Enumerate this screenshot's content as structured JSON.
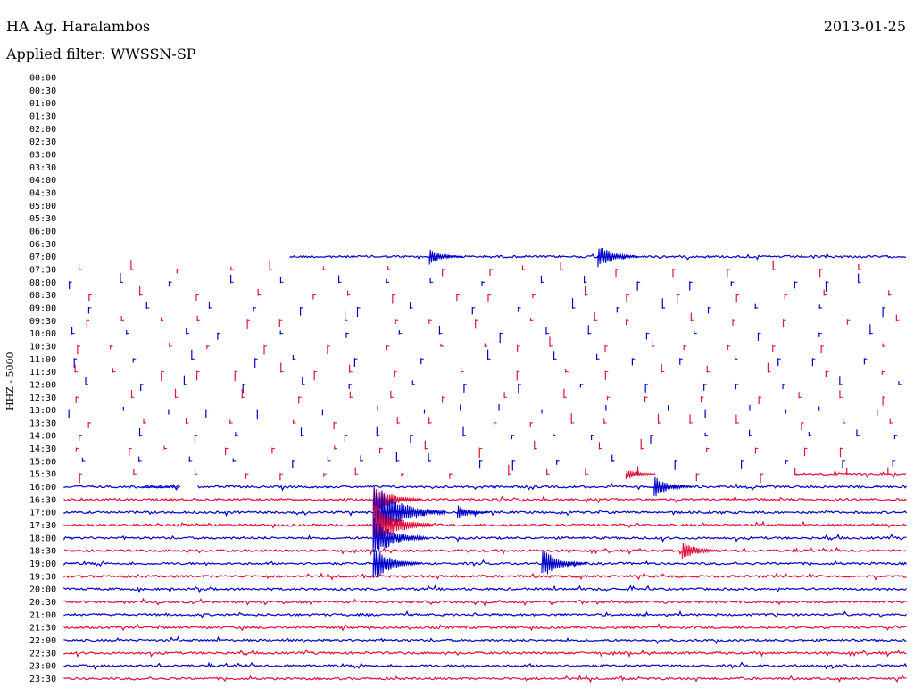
{
  "header": {
    "station": "HA Ag. Haralambos",
    "date": "2013-01-25",
    "filter": "Applied filter: WWSSN-SP"
  },
  "chart_data": {
    "type": "line",
    "title": "HA Ag. Haralambos",
    "ylabel": "HHZ - 5000",
    "colors": [
      "#0000cc",
      "#e0103c"
    ],
    "time_labels": [
      "00:00",
      "00:30",
      "01:00",
      "01:30",
      "02:00",
      "02:30",
      "03:00",
      "03:30",
      "04:00",
      "04:30",
      "05:00",
      "05:30",
      "06:00",
      "06:30",
      "07:00",
      "07:30",
      "08:00",
      "08:30",
      "09:00",
      "09:30",
      "10:00",
      "10:30",
      "11:00",
      "11:30",
      "12:00",
      "12:30",
      "13:00",
      "13:30",
      "14:00",
      "14:30",
      "15:00",
      "15:30",
      "16:00",
      "16:30",
      "17:00",
      "17:30",
      "18:00",
      "18:30",
      "19:00",
      "19:30",
      "20:00",
      "20:30",
      "21:00",
      "21:30",
      "22:00",
      "22:30",
      "23:00",
      "23:30"
    ],
    "trace_mode": [
      "none",
      "none",
      "none",
      "none",
      "none",
      "none",
      "none",
      "none",
      "none",
      "none",
      "none",
      "none",
      "none",
      "none",
      "partial",
      "spikes",
      "spikes",
      "spikes",
      "spikes",
      "spikes",
      "spikes",
      "spikes",
      "spikes",
      "spikes",
      "spikes",
      "spikes",
      "spikes",
      "spikes",
      "spikes",
      "spikes",
      "spikes",
      "mixed",
      "gappy",
      "full",
      "full",
      "full",
      "full",
      "full",
      "full",
      "full",
      "full",
      "full",
      "full",
      "full",
      "full",
      "full",
      "full",
      "full"
    ],
    "events": [
      {
        "time": "07:00",
        "minute": 13,
        "amp": 1.2
      },
      {
        "time": "07:00",
        "minute": 19,
        "amp": 1.8
      },
      {
        "time": "15:30",
        "minute": 20,
        "amp": 0.9
      },
      {
        "time": "16:00",
        "minute": 21,
        "amp": 1.6
      },
      {
        "time": "16:30",
        "minute": 11,
        "amp": 2.5
      },
      {
        "time": "17:00",
        "minute": 11,
        "amp": 4.5
      },
      {
        "time": "17:00",
        "minute": 14,
        "amp": 1.1
      },
      {
        "time": "17:30",
        "minute": 11,
        "amp": 3.5
      },
      {
        "time": "18:00",
        "minute": 11,
        "amp": 3.0
      },
      {
        "time": "18:30",
        "minute": 22,
        "amp": 1.6
      },
      {
        "time": "19:00",
        "minute": 17,
        "amp": 2.2
      },
      {
        "time": "19:00",
        "minute": 11,
        "amp": 2.5
      }
    ]
  }
}
